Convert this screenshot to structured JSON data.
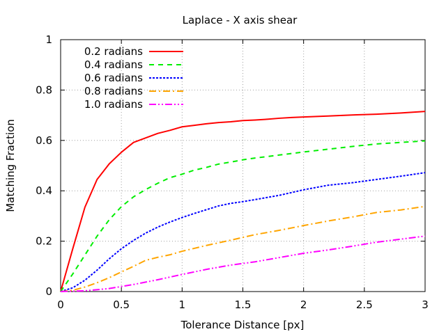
{
  "chart_data": {
    "type": "line",
    "title": "Laplace - X axis shear",
    "xlabel": "Tolerance Distance [px]",
    "ylabel": "Matching Fraction",
    "xlim": [
      0,
      3
    ],
    "ylim": [
      0,
      1
    ],
    "xticks": [
      0,
      0.5,
      1,
      1.5,
      2,
      2.5,
      3
    ],
    "xtick_labels": [
      "0",
      "0.5",
      "1",
      "1.5",
      "2",
      "2.5",
      "3"
    ],
    "yticks": [
      0,
      0.2,
      0.4,
      0.6,
      0.8,
      1
    ],
    "ytick_labels": [
      "0",
      "0.2",
      "0.4",
      "0.6",
      "0.8",
      "1"
    ],
    "grid": true,
    "legend_position": "top-left",
    "series": [
      {
        "name": "0.2 radians",
        "color": "#ff0000",
        "dash": "solid",
        "x": [
          0,
          0.1,
          0.2,
          0.3,
          0.4,
          0.5,
          0.6,
          0.7,
          0.8,
          0.9,
          1.0,
          1.1,
          1.2,
          1.3,
          1.4,
          1.5,
          1.6,
          1.7,
          1.8,
          1.9,
          2.0,
          2.2,
          2.4,
          2.6,
          2.8,
          3.0
        ],
        "y": [
          0,
          0.17,
          0.335,
          0.445,
          0.507,
          0.553,
          0.592,
          0.61,
          0.628,
          0.64,
          0.654,
          0.66,
          0.666,
          0.671,
          0.674,
          0.679,
          0.681,
          0.684,
          0.688,
          0.691,
          0.693,
          0.697,
          0.701,
          0.704,
          0.709,
          0.715
        ]
      },
      {
        "name": "0.4 radians",
        "color": "#00ee00",
        "dash": "dashed",
        "x": [
          0,
          0.1,
          0.2,
          0.3,
          0.4,
          0.5,
          0.6,
          0.7,
          0.8,
          0.9,
          1.0,
          1.1,
          1.2,
          1.3,
          1.4,
          1.5,
          1.6,
          1.8,
          2.0,
          2.2,
          2.4,
          2.6,
          2.8,
          3.0
        ],
        "y": [
          0,
          0.07,
          0.145,
          0.22,
          0.285,
          0.337,
          0.376,
          0.405,
          0.43,
          0.452,
          0.466,
          0.482,
          0.493,
          0.506,
          0.514,
          0.523,
          0.53,
          0.542,
          0.554,
          0.565,
          0.576,
          0.586,
          0.592,
          0.598
        ]
      },
      {
        "name": "0.6 radians",
        "color": "#0000ff",
        "dash": "dotted",
        "x": [
          0,
          0.1,
          0.2,
          0.3,
          0.4,
          0.5,
          0.6,
          0.7,
          0.8,
          0.9,
          1.0,
          1.1,
          1.2,
          1.3,
          1.4,
          1.5,
          1.6,
          1.8,
          2.0,
          2.2,
          2.4,
          2.6,
          2.8,
          3.0
        ],
        "y": [
          0,
          0.015,
          0.045,
          0.085,
          0.13,
          0.17,
          0.203,
          0.232,
          0.256,
          0.276,
          0.294,
          0.31,
          0.325,
          0.34,
          0.35,
          0.357,
          0.365,
          0.382,
          0.404,
          0.422,
          0.432,
          0.445,
          0.458,
          0.472
        ]
      },
      {
        "name": "0.8 radians",
        "color": "#ffa500",
        "dash": "dash-dot",
        "x": [
          0,
          0.1,
          0.2,
          0.3,
          0.4,
          0.5,
          0.6,
          0.7,
          0.8,
          0.9,
          1.0,
          1.2,
          1.4,
          1.6,
          1.8,
          2.0,
          2.2,
          2.4,
          2.6,
          2.8,
          3.0
        ],
        "y": [
          0,
          0.005,
          0.018,
          0.035,
          0.055,
          0.078,
          0.1,
          0.124,
          0.136,
          0.146,
          0.16,
          0.183,
          0.204,
          0.226,
          0.243,
          0.262,
          0.28,
          0.296,
          0.314,
          0.324,
          0.338
        ]
      },
      {
        "name": "1.0 radians",
        "color": "#ff00ff",
        "dash": "dash-dot-dot",
        "x": [
          0,
          0.2,
          0.4,
          0.6,
          0.8,
          1.0,
          1.2,
          1.4,
          1.6,
          1.8,
          2.0,
          2.2,
          2.4,
          2.6,
          2.8,
          3.0
        ],
        "y": [
          0,
          0.003,
          0.012,
          0.028,
          0.047,
          0.068,
          0.088,
          0.105,
          0.118,
          0.135,
          0.152,
          0.165,
          0.18,
          0.196,
          0.208,
          0.22
        ]
      }
    ]
  }
}
